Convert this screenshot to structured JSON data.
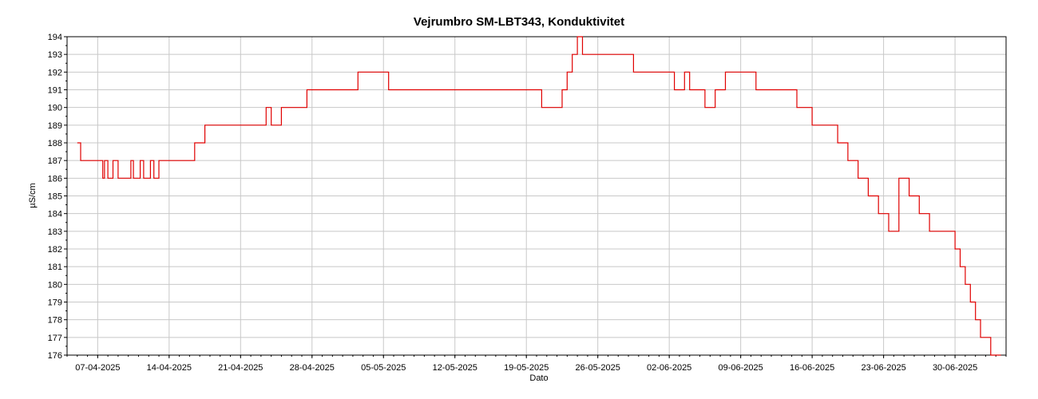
{
  "chart_data": {
    "type": "line",
    "title": "Vejrumbro SM-LBT343, Konduktivitet",
    "xlabel": "Dato",
    "ylabel": "µS/cm",
    "ylim": [
      176,
      194
    ],
    "xlim": [
      "2025-04-04",
      "2025-07-05"
    ],
    "grid": true,
    "x_ticks": [
      "07-04-2025",
      "14-04-2025",
      "21-04-2025",
      "28-04-2025",
      "05-05-2025",
      "12-05-2025",
      "19-05-2025",
      "26-05-2025",
      "02-06-2025",
      "09-06-2025",
      "16-06-2025",
      "23-06-2025",
      "30-06-2025"
    ],
    "y_ticks": [
      176,
      177,
      178,
      179,
      180,
      181,
      182,
      183,
      184,
      185,
      186,
      187,
      188,
      189,
      190,
      191,
      192,
      193,
      194
    ],
    "series_color": "#e00000",
    "series": [
      {
        "x": [
          "2025-04-05T00:00",
          "2025-04-05T08:00",
          "2025-04-07T12:00",
          "2025-04-07T16:00",
          "2025-04-08T00:00",
          "2025-04-08T12:00",
          "2025-04-09T00:00",
          "2025-04-09T06:00",
          "2025-04-10T06:00",
          "2025-04-10T12:00",
          "2025-04-11T04:00",
          "2025-04-11T12:00",
          "2025-04-12T04:00",
          "2025-04-12T12:00",
          "2025-04-13T00:00",
          "2025-04-14T00:00",
          "2025-04-16T12:00",
          "2025-04-17T12:00",
          "2025-04-18T12:00",
          "2025-04-20T00:00",
          "2025-04-23T12:00",
          "2025-04-24T00:00",
          "2025-04-25T00:00",
          "2025-04-27T00:00",
          "2025-04-27T12:00",
          "2025-04-28T12:00",
          "2025-05-02T12:00",
          "2025-05-04T12:00",
          "2025-05-05T12:00",
          "2025-05-07T12:00",
          "2025-05-08T00:00",
          "2025-05-08T12:00",
          "2025-05-20T12:00",
          "2025-05-21T12:00",
          "2025-05-22T12:00",
          "2025-05-23T00:00",
          "2025-05-23T12:00",
          "2025-05-24T00:00",
          "2025-05-24T12:00",
          "2025-05-25T00:00",
          "2025-05-29T12:00",
          "2025-05-30T12:00",
          "2025-06-01T12:00",
          "2025-06-02T12:00",
          "2025-06-03T12:00",
          "2025-06-04T00:00",
          "2025-06-05T12:00",
          "2025-06-06T12:00",
          "2025-06-07T12:00",
          "2025-06-08T00:00",
          "2025-06-10T12:00",
          "2025-06-14T12:00",
          "2025-06-16T00:00",
          "2025-06-18T12:00",
          "2025-06-19T12:00",
          "2025-06-20T12:00",
          "2025-06-21T12:00",
          "2025-06-22T12:00",
          "2025-06-23T12:00",
          "2025-06-24T12:00",
          "2025-06-25T12:00",
          "2025-06-26T12:00",
          "2025-06-27T12:00",
          "2025-06-30T00:00",
          "2025-06-30T12:00",
          "2025-07-01T00:00",
          "2025-07-01T12:00",
          "2025-07-02T00:00",
          "2025-07-02T12:00",
          "2025-07-03T12:00",
          "2025-07-04T12:00"
        ],
        "values": [
          188,
          187,
          186,
          187,
          186,
          187,
          186,
          186,
          187,
          186,
          187,
          186,
          187,
          186,
          187,
          187,
          188,
          189,
          189,
          189,
          190,
          189,
          190,
          190,
          191,
          191,
          192,
          192,
          191,
          191,
          191,
          191,
          190,
          190,
          191,
          192,
          193,
          194,
          193,
          193,
          192,
          192,
          192,
          191,
          192,
          191,
          190,
          191,
          192,
          192,
          191,
          190,
          189,
          188,
          187,
          186,
          185,
          184,
          183,
          186,
          185,
          184,
          183,
          182,
          181,
          180,
          179,
          178,
          177,
          176,
          176
        ]
      }
    ]
  }
}
